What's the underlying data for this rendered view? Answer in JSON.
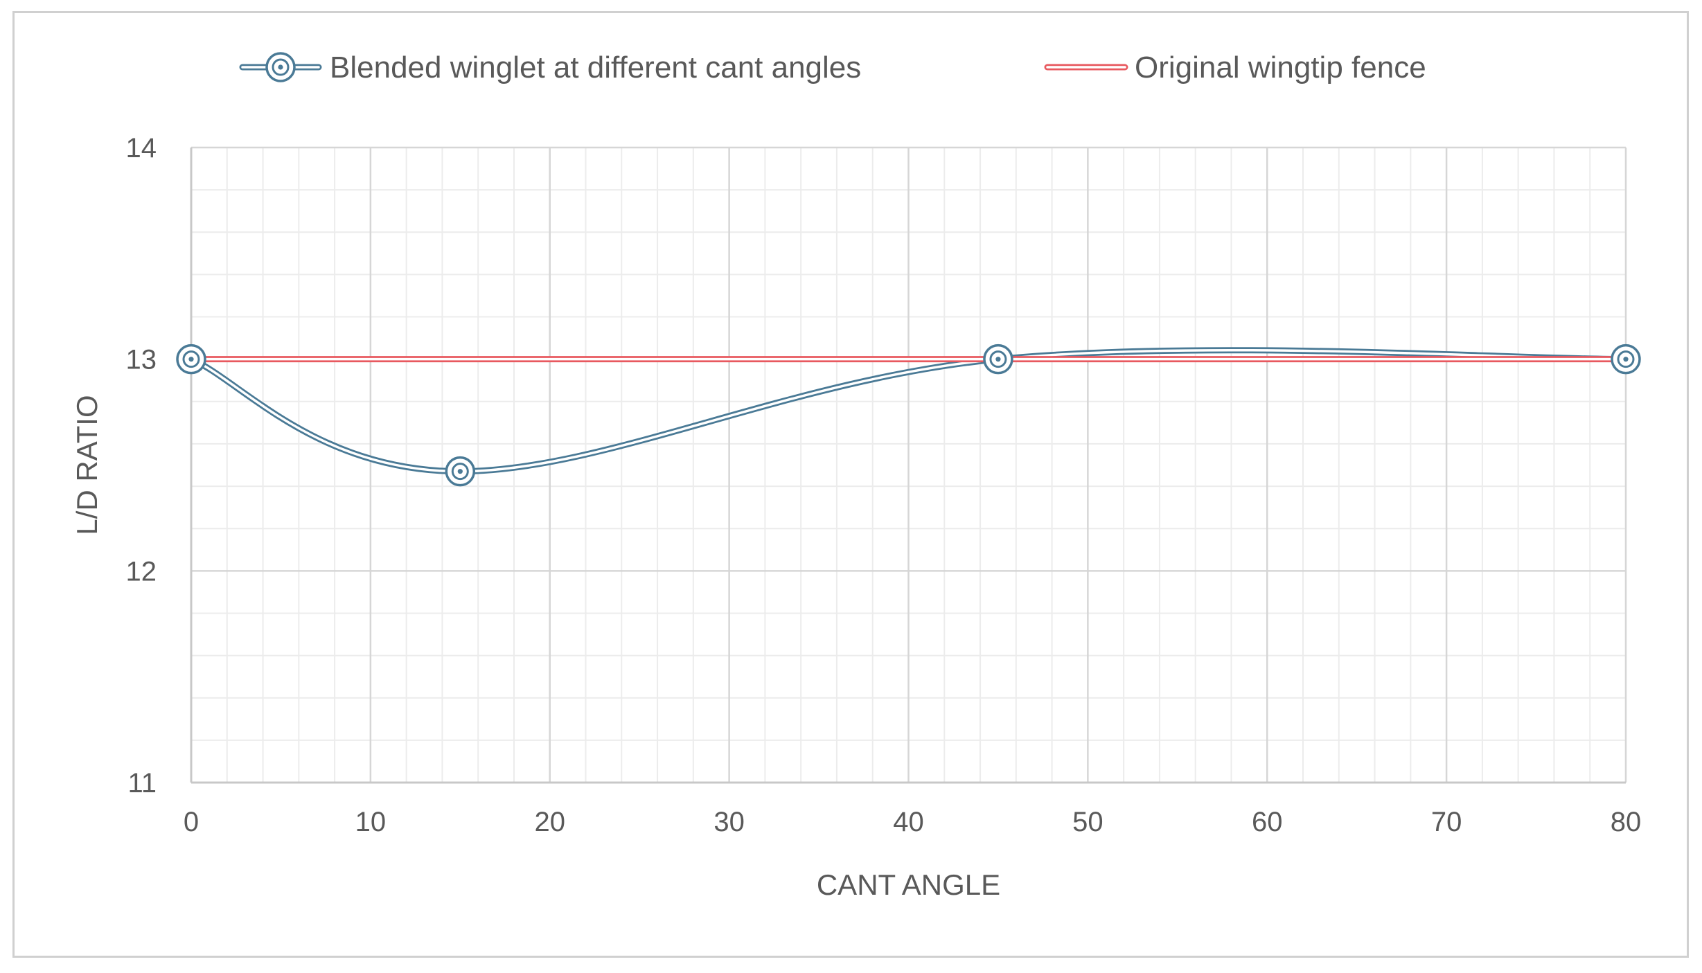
{
  "chart_data": {
    "type": "line",
    "title": "",
    "xlabel": "CANT ANGLE",
    "ylabel": "L/D RATIO",
    "xlim": [
      0,
      80
    ],
    "ylim": [
      11,
      14
    ],
    "x_major_ticks": [
      0,
      10,
      20,
      30,
      40,
      50,
      60,
      70,
      80
    ],
    "x_tick_labels": [
      "0",
      "10",
      "20",
      "30",
      "40",
      "50",
      "60",
      "70",
      "80"
    ],
    "y_major_ticks": [
      11,
      12,
      13,
      14
    ],
    "y_tick_labels": [
      "11",
      "12",
      "13",
      "14"
    ],
    "x_minor_step": 2,
    "y_minor_step": 0.2,
    "grid": true,
    "legend_position": "top",
    "series": [
      {
        "name": "Blended winglet at different cant angles",
        "color": "#4a7a96",
        "style": "smooth-line-with-circle-markers",
        "x": [
          0,
          15,
          45,
          80
        ],
        "y": [
          13.0,
          12.47,
          13.0,
          13.0
        ]
      },
      {
        "name": "Original wingtip fence",
        "color": "#e8595f",
        "style": "line",
        "x": [
          0,
          80
        ],
        "y": [
          13.0,
          13.0
        ]
      }
    ]
  }
}
